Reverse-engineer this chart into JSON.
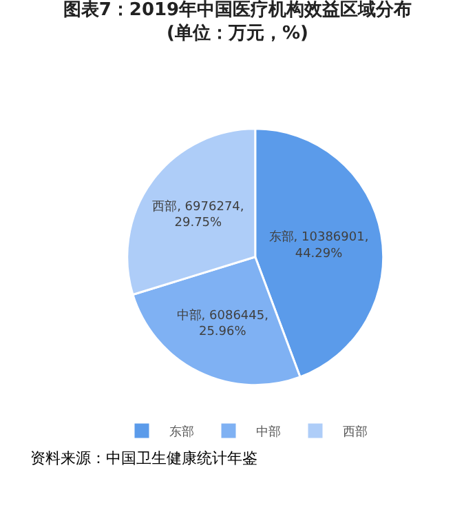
{
  "chart_data": {
    "type": "pie",
    "title": "图表7：2019年中国医疗机构效益区域分布\n(单位：万元，%)",
    "categories": [
      "东部",
      "中部",
      "西部"
    ],
    "values": [
      10386901,
      6086445,
      6976274
    ],
    "colors": [
      "#5b9bea",
      "#7fb1f3",
      "#aecdf8"
    ],
    "value_labels": [
      "东部, 10386901,\n44.29%",
      "中部, 6086445,\n25.96%",
      "西部, 6976274,\n29.75%"
    ],
    "legend": "bottom",
    "annotations": [
      "资料来源：中国卫生健康统计年鉴"
    ]
  }
}
